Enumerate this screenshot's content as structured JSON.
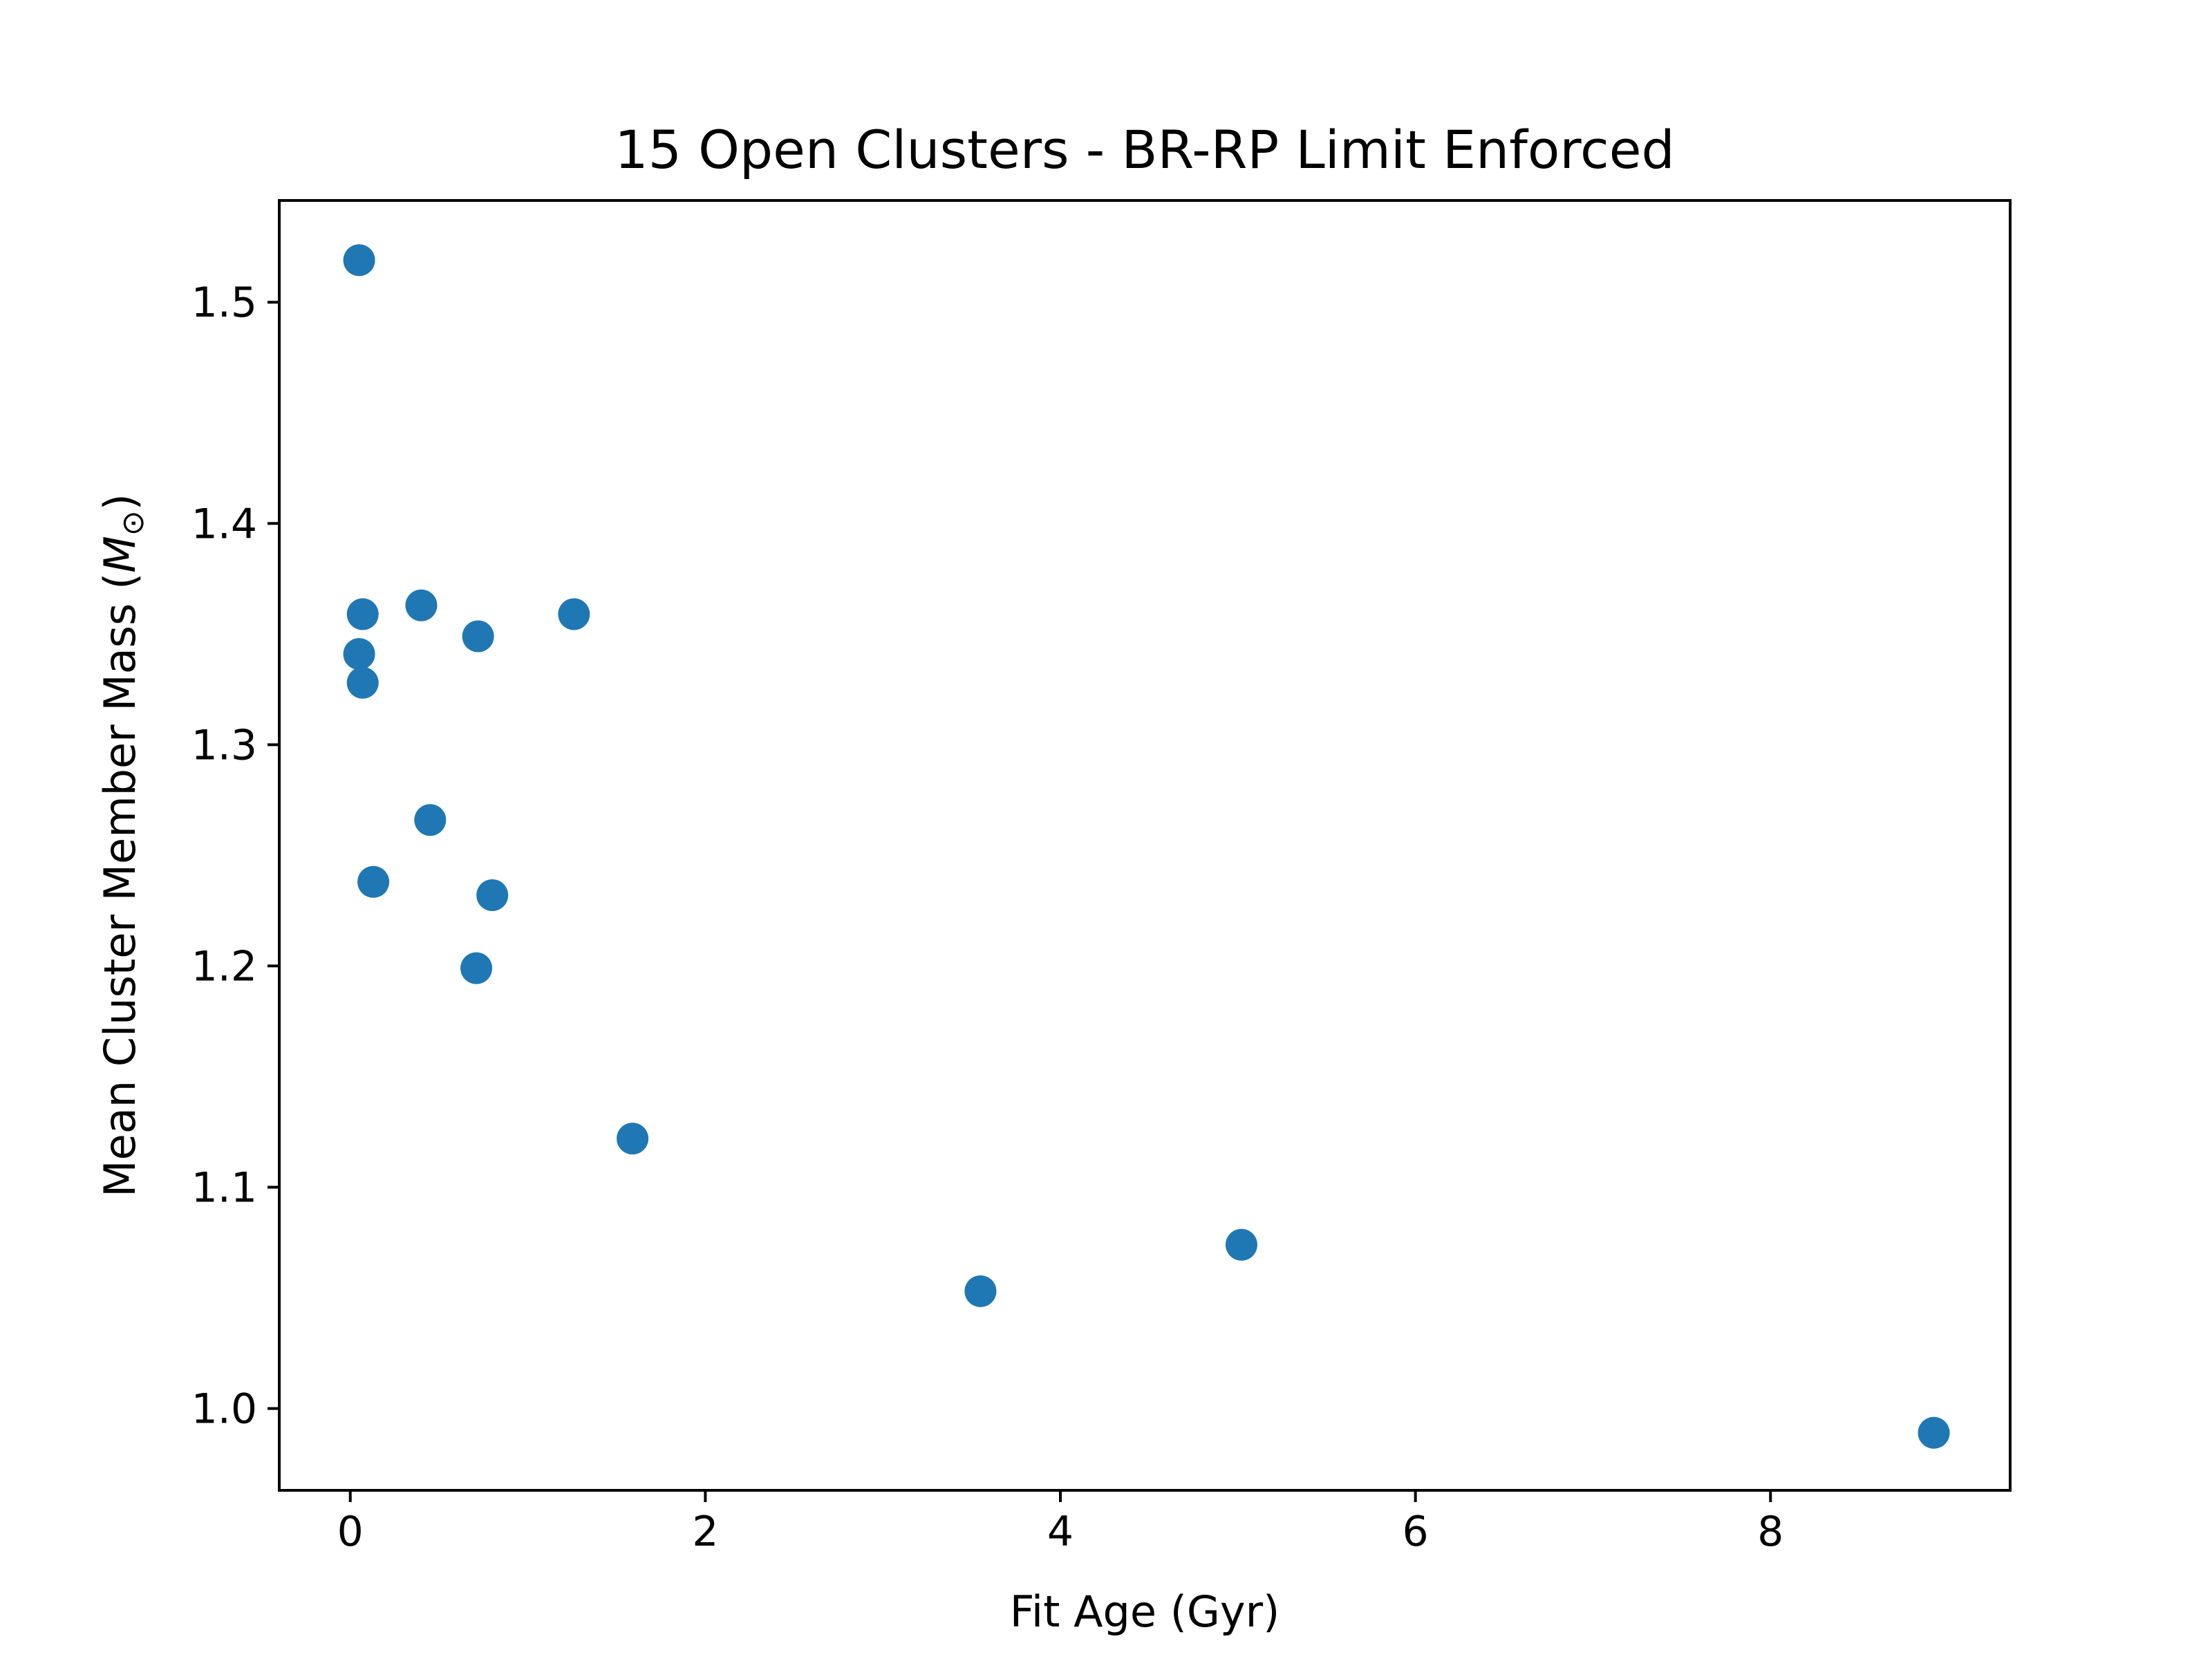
{
  "chart_data": {
    "type": "scatter",
    "title": "15 Open Clusters - BR-RP Limit Enforced",
    "xlabel": "Fit Age (Gyr)",
    "ylabel_main": "Mean Cluster Member Mass (",
    "ylabel_symbol": "M",
    "ylabel_subscript": "⊙",
    "ylabel_close": ")",
    "xlim": [
      -0.4,
      9.35
    ],
    "ylim": [
      0.963,
      1.546
    ],
    "xticks": [
      0,
      2,
      4,
      6,
      8
    ],
    "xtick_labels": [
      "0",
      "2",
      "4",
      "6",
      "8"
    ],
    "yticks": [
      1.0,
      1.1,
      1.2,
      1.3,
      1.4,
      1.5
    ],
    "ytick_labels": [
      "1.0",
      "1.1",
      "1.2",
      "1.3",
      "1.4",
      "1.5"
    ],
    "grid": false,
    "legend": "none",
    "color": "#1f77b4",
    "points": [
      {
        "x": 0.05,
        "y": 1.519
      },
      {
        "x": 0.07,
        "y": 1.359
      },
      {
        "x": 0.05,
        "y": 1.341
      },
      {
        "x": 0.07,
        "y": 1.328
      },
      {
        "x": 0.4,
        "y": 1.363
      },
      {
        "x": 0.72,
        "y": 1.349
      },
      {
        "x": 1.26,
        "y": 1.359
      },
      {
        "x": 0.45,
        "y": 1.266
      },
      {
        "x": 0.13,
        "y": 1.238
      },
      {
        "x": 0.8,
        "y": 1.232
      },
      {
        "x": 0.71,
        "y": 1.199
      },
      {
        "x": 1.59,
        "y": 1.122
      },
      {
        "x": 3.55,
        "y": 1.053
      },
      {
        "x": 5.02,
        "y": 1.074
      },
      {
        "x": 8.92,
        "y": 0.989
      }
    ]
  }
}
